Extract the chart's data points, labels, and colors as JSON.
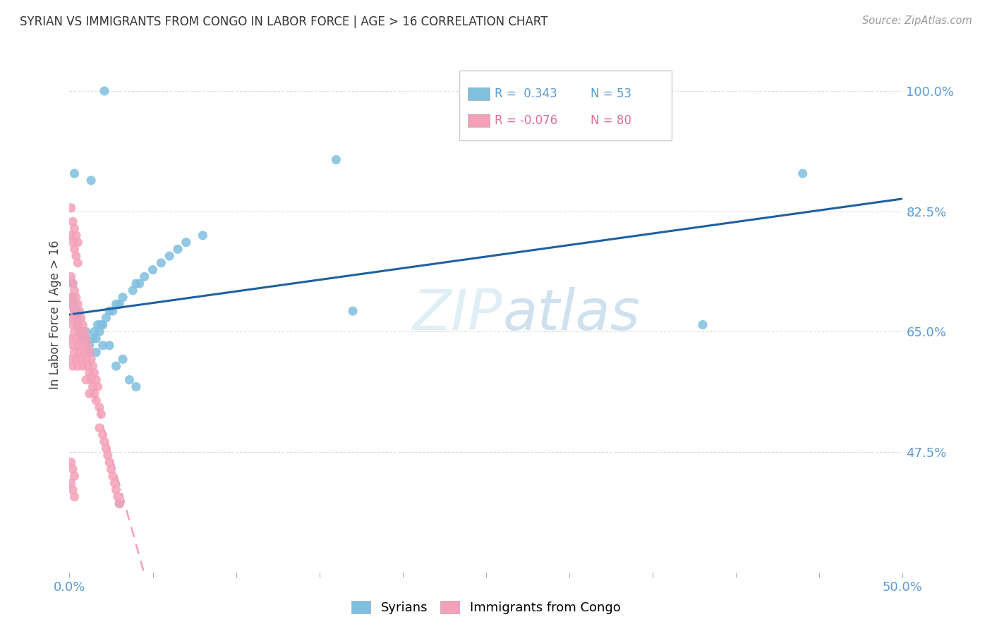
{
  "title": "SYRIAN VS IMMIGRANTS FROM CONGO IN LABOR FORCE | AGE > 16 CORRELATION CHART",
  "source": "Source: ZipAtlas.com",
  "ylabel": "In Labor Force | Age > 16",
  "yticks": [
    0.475,
    0.65,
    0.825,
    1.0
  ],
  "ytick_labels": [
    "47.5%",
    "65.0%",
    "82.5%",
    "100.0%"
  ],
  "xlim": [
    0.0,
    0.5
  ],
  "ylim": [
    0.3,
    1.05
  ],
  "background_color": "#ffffff",
  "grid_color": "#dddddd",
  "syrians_color": "#7fbfdf",
  "congo_color": "#f4a0b8",
  "syrians_line_color": "#2060a0",
  "congo_line_color": "#f4a0b8",
  "syrians_label": "Syrians",
  "congo_label": "Immigrants from Congo",
  "legend_R_syrians": "R =  0.343",
  "legend_N_syrians": "N = 53",
  "legend_R_congo": "R = -0.076",
  "legend_N_congo": "N = 80",
  "legend_color_syrians": "#5b9bd5",
  "legend_color_congo": "#e07090",
  "syrians_x": [
    0.021,
    0.003,
    0.013,
    0.002,
    0.002,
    0.003,
    0.004,
    0.004,
    0.005,
    0.005,
    0.006,
    0.006,
    0.007,
    0.008,
    0.01,
    0.01,
    0.012,
    0.014,
    0.015,
    0.016,
    0.017,
    0.018,
    0.019,
    0.02,
    0.022,
    0.024,
    0.026,
    0.028,
    0.03,
    0.032,
    0.038,
    0.04,
    0.042,
    0.045,
    0.05,
    0.055,
    0.06,
    0.065,
    0.07,
    0.08,
    0.012,
    0.016,
    0.02,
    0.024,
    0.028,
    0.032,
    0.036,
    0.04,
    0.16,
    0.17,
    0.38,
    0.44,
    0.03
  ],
  "syrians_y": [
    1.0,
    0.88,
    0.87,
    0.72,
    0.7,
    0.69,
    0.68,
    0.67,
    0.67,
    0.66,
    0.65,
    0.65,
    0.64,
    0.64,
    0.65,
    0.64,
    0.63,
    0.64,
    0.65,
    0.64,
    0.66,
    0.65,
    0.66,
    0.66,
    0.67,
    0.68,
    0.68,
    0.69,
    0.69,
    0.7,
    0.71,
    0.72,
    0.72,
    0.73,
    0.74,
    0.75,
    0.76,
    0.77,
    0.78,
    0.79,
    0.62,
    0.62,
    0.63,
    0.63,
    0.6,
    0.61,
    0.58,
    0.57,
    0.9,
    0.68,
    0.66,
    0.88,
    0.4
  ],
  "congo_x": [
    0.001,
    0.001,
    0.001,
    0.001,
    0.001,
    0.002,
    0.002,
    0.002,
    0.002,
    0.002,
    0.003,
    0.003,
    0.003,
    0.003,
    0.004,
    0.004,
    0.004,
    0.004,
    0.005,
    0.005,
    0.005,
    0.005,
    0.006,
    0.006,
    0.006,
    0.007,
    0.007,
    0.007,
    0.008,
    0.008,
    0.008,
    0.009,
    0.009,
    0.01,
    0.01,
    0.01,
    0.011,
    0.011,
    0.012,
    0.012,
    0.012,
    0.013,
    0.013,
    0.014,
    0.014,
    0.015,
    0.015,
    0.016,
    0.016,
    0.017,
    0.018,
    0.018,
    0.019,
    0.02,
    0.021,
    0.022,
    0.023,
    0.024,
    0.025,
    0.026,
    0.027,
    0.028,
    0.029,
    0.03,
    0.001,
    0.001,
    0.002,
    0.002,
    0.003,
    0.003,
    0.004,
    0.004,
    0.005,
    0.005,
    0.001,
    0.001,
    0.002,
    0.002,
    0.003,
    0.003
  ],
  "congo_y": [
    0.73,
    0.7,
    0.67,
    0.64,
    0.61,
    0.72,
    0.69,
    0.66,
    0.63,
    0.6,
    0.71,
    0.68,
    0.65,
    0.62,
    0.7,
    0.67,
    0.64,
    0.61,
    0.69,
    0.66,
    0.63,
    0.6,
    0.68,
    0.65,
    0.62,
    0.67,
    0.64,
    0.61,
    0.66,
    0.63,
    0.6,
    0.65,
    0.62,
    0.64,
    0.61,
    0.58,
    0.63,
    0.6,
    0.62,
    0.59,
    0.56,
    0.61,
    0.58,
    0.6,
    0.57,
    0.59,
    0.56,
    0.58,
    0.55,
    0.57,
    0.54,
    0.51,
    0.53,
    0.5,
    0.49,
    0.48,
    0.47,
    0.46,
    0.45,
    0.44,
    0.43,
    0.42,
    0.41,
    0.4,
    0.83,
    0.79,
    0.81,
    0.78,
    0.8,
    0.77,
    0.79,
    0.76,
    0.78,
    0.75,
    0.46,
    0.43,
    0.45,
    0.42,
    0.44,
    0.41
  ]
}
